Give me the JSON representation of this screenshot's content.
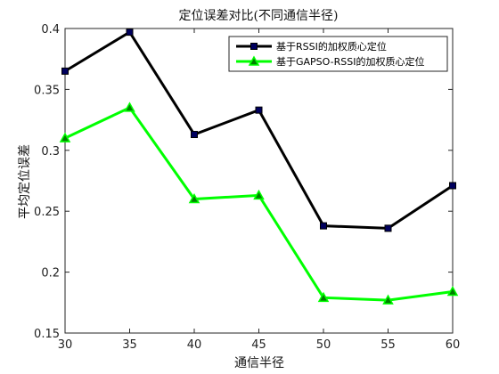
{
  "chart_data": {
    "type": "line",
    "title": "定位误差对比(不同通信半径)",
    "xlabel": "通信半径",
    "ylabel": "平均定位误差",
    "x": [
      30,
      35,
      40,
      45,
      50,
      55,
      60
    ],
    "xlim": [
      30,
      60
    ],
    "ylim": [
      0.15,
      0.4
    ],
    "xticks": [
      "30",
      "35",
      "40",
      "45",
      "50",
      "55",
      "60"
    ],
    "yticks": [
      "0.15",
      "0.2",
      "0.25",
      "0.3",
      "0.35",
      "0.4"
    ],
    "grid": false,
    "legend_position": "top-right",
    "series": [
      {
        "name": "基于RSSI的加权质心定位",
        "values": [
          0.365,
          0.397,
          0.313,
          0.333,
          0.238,
          0.236,
          0.271
        ],
        "line_color": "#000000",
        "marker": "square",
        "marker_fill": "#00005e"
      },
      {
        "name": "基于GAPSO-RSSI的加权质心定位",
        "values": [
          0.31,
          0.335,
          0.26,
          0.263,
          0.179,
          0.177,
          0.184
        ],
        "line_color": "#00ff00",
        "marker": "triangle",
        "marker_fill": "#008000"
      }
    ]
  }
}
